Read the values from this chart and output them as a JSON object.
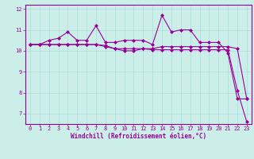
{
  "xlabel": "Windchill (Refroidissement éolien,°C)",
  "background_color": "#cceee8",
  "line_color": "#990099",
  "x_values": [
    0,
    1,
    2,
    3,
    4,
    5,
    6,
    7,
    8,
    9,
    10,
    11,
    12,
    13,
    14,
    15,
    16,
    17,
    18,
    19,
    20,
    21,
    22,
    23
  ],
  "y_series1": [
    10.3,
    10.3,
    10.5,
    10.6,
    10.9,
    10.5,
    10.5,
    11.2,
    10.4,
    10.4,
    10.5,
    10.5,
    10.5,
    10.3,
    11.7,
    10.9,
    11.0,
    11.0,
    10.4,
    10.4,
    10.4,
    9.9,
    7.7,
    7.7
  ],
  "y_series2": [
    10.3,
    10.3,
    10.3,
    10.3,
    10.3,
    10.3,
    10.3,
    10.3,
    10.2,
    10.1,
    10.0,
    10.0,
    10.1,
    10.1,
    10.2,
    10.2,
    10.2,
    10.2,
    10.2,
    10.2,
    10.2,
    10.2,
    10.1,
    7.7
  ],
  "y_series3": [
    10.3,
    10.3,
    10.3,
    10.3,
    10.3,
    10.3,
    10.3,
    10.3,
    10.25,
    10.1,
    10.1,
    10.1,
    10.1,
    10.05,
    10.05,
    10.05,
    10.05,
    10.05,
    10.05,
    10.05,
    10.05,
    10.05,
    8.1,
    6.6
  ],
  "ylim": [
    6.5,
    12.2
  ],
  "xlim": [
    -0.5,
    23.5
  ],
  "yticks": [
    7,
    8,
    9,
    10,
    11,
    12
  ],
  "xticks": [
    0,
    1,
    2,
    3,
    4,
    5,
    6,
    7,
    8,
    9,
    10,
    11,
    12,
    13,
    14,
    15,
    16,
    17,
    18,
    19,
    20,
    21,
    22,
    23
  ],
  "grid_color": "#aadddd",
  "marker": "D",
  "markersize": 2.0,
  "linewidth": 0.8,
  "tick_fontsize": 5.0,
  "label_fontsize": 5.5
}
